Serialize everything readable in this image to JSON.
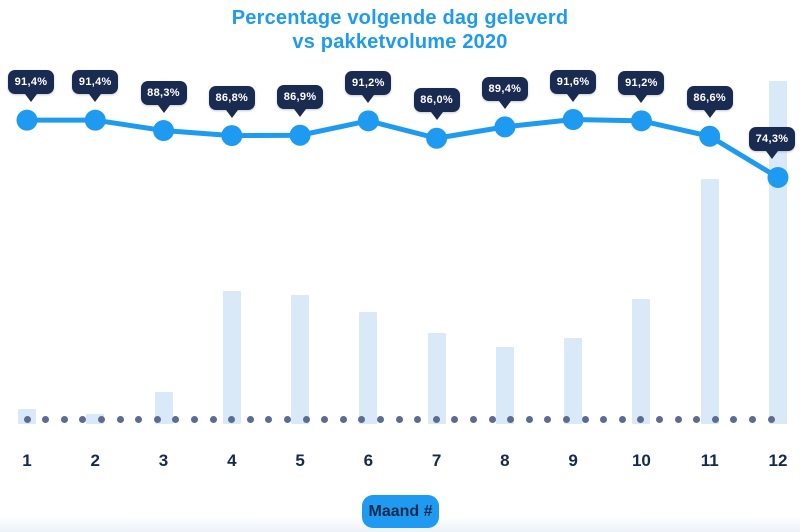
{
  "title": {
    "line1": "Percentage volgende dag geleverd",
    "line2": "vs pakketvolume 2020"
  },
  "xaxis": {
    "label": "Maand #",
    "tick_labels": [
      "1",
      "2",
      "3",
      "4",
      "5",
      "6",
      "7",
      "8",
      "9",
      "10",
      "11",
      "12"
    ]
  },
  "colors": {
    "accent_blue": "#1E9BF0",
    "title_blue": "#1E9BF0",
    "badge_navy": "#1A2B52",
    "bar_light_blue": "#DAE9F8",
    "dot_gray_blue": "#5A6C92",
    "text_navy": "#16294E"
  },
  "chart_data": {
    "type": "combo: line with labeled points + background bars",
    "title": "Percentage volgende dag geleverd vs pakketvolume 2020",
    "xlabel": "Maand #",
    "categories": [
      1,
      2,
      3,
      4,
      5,
      6,
      7,
      8,
      9,
      10,
      11,
      12
    ],
    "legend": "none",
    "grid": "none; dotted horizontal baseline near x-axis",
    "series": [
      {
        "name": "Percentage volgende dag geleverd",
        "type": "line",
        "unit": "%",
        "values": [
          91.4,
          91.4,
          88.3,
          86.8,
          86.9,
          91.2,
          86.0,
          89.4,
          91.6,
          91.2,
          86.6,
          74.3
        ],
        "point_labels": [
          "91,4%",
          "91,4%",
          "88,3%",
          "86,8%",
          "86,9%",
          "91,2%",
          "86,0%",
          "89,4%",
          "91,6%",
          "91,2%",
          "86,6%",
          "74,3%"
        ]
      },
      {
        "name": "Pakketvolume 2020",
        "type": "bar",
        "unit": "relative index (no numeric axis shown; max bar = 100)",
        "values": [
          4.4,
          2.9,
          9.3,
          38.8,
          37.6,
          32.7,
          26.5,
          22.4,
          25.1,
          36.4,
          71.4,
          100
        ]
      }
    ]
  }
}
